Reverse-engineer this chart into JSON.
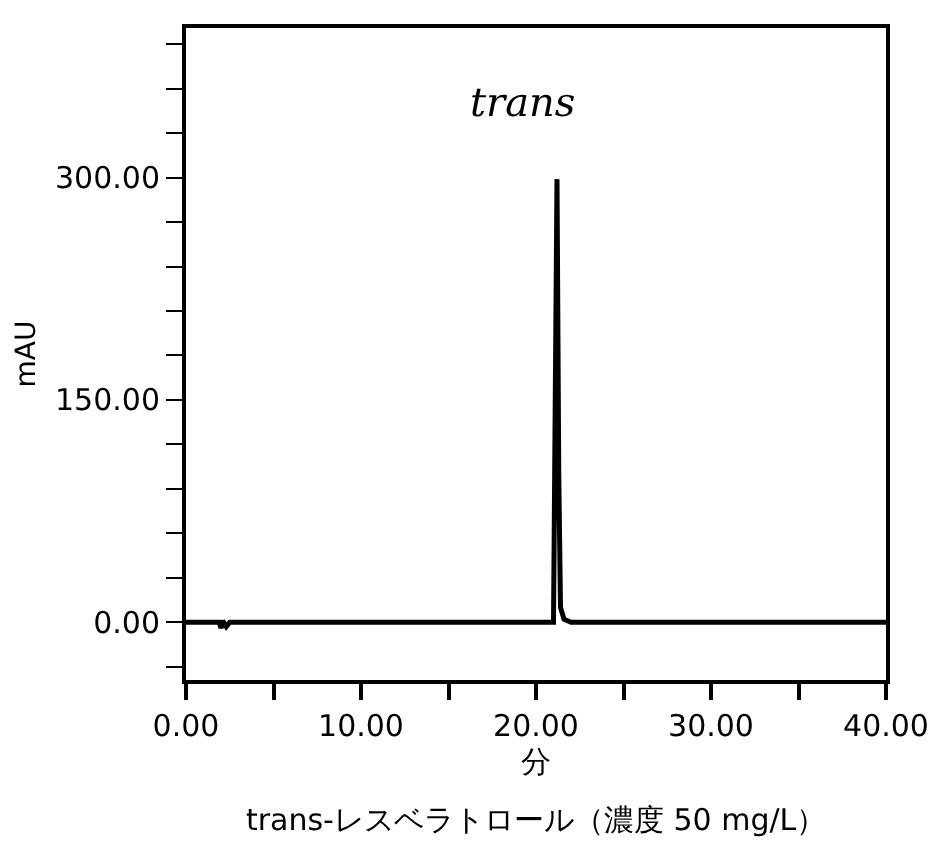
{
  "chart_data": {
    "type": "line",
    "xlabel": "分",
    "ylabel": "mAU",
    "annotations": [
      "trans",
      "trans-レスベラトロール（濃度 50 mg/L）"
    ],
    "x": [
      0,
      1.9,
      2.0,
      2.1,
      2.3,
      2.5,
      21.0,
      21.1,
      21.2,
      21.3,
      21.4,
      21.6,
      22.0,
      40
    ],
    "series": [
      {
        "color": "#000000",
        "values": [
          0,
          0,
          -4,
          1,
          -3,
          0,
          0,
          150,
          299,
          100,
          10,
          2,
          0,
          0
        ]
      }
    ],
    "xlim": [
      0,
      40
    ],
    "xticks": [
      {
        "value": 0,
        "label": "0.00"
      },
      {
        "value": 5,
        "label": null
      },
      {
        "value": 10,
        "label": "10.00"
      },
      {
        "value": 15,
        "label": null
      },
      {
        "value": 20,
        "label": "20.00"
      },
      {
        "value": 25,
        "label": null
      },
      {
        "value": 30,
        "label": "30.00"
      },
      {
        "value": 35,
        "label": null
      },
      {
        "value": 40,
        "label": "40.00"
      }
    ],
    "ylim": [
      -39,
      401
    ],
    "yticks": [
      {
        "value": -30,
        "label": null
      },
      {
        "value": 0,
        "label": "0.00"
      },
      {
        "value": 30,
        "label": null
      },
      {
        "value": 60,
        "label": null
      },
      {
        "value": 90,
        "label": null
      },
      {
        "value": 120,
        "label": null
      },
      {
        "value": 150,
        "label": "150.00"
      },
      {
        "value": 180,
        "label": null
      },
      {
        "value": 210,
        "label": null
      },
      {
        "value": 240,
        "label": null
      },
      {
        "value": 270,
        "label": null
      },
      {
        "value": 300,
        "label": "300.00"
      },
      {
        "value": 330,
        "label": null
      },
      {
        "value": 360,
        "label": null
      },
      {
        "value": 390,
        "label": null
      }
    ],
    "marker": "none",
    "line_style": "solid"
  }
}
